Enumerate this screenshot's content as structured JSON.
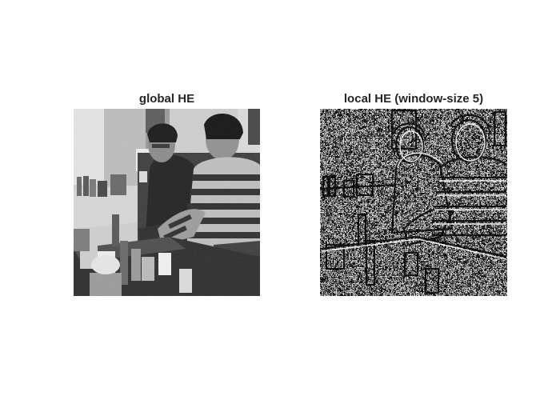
{
  "figure": {
    "background": "#ffffff",
    "panels": [
      {
        "title": "global HE",
        "content": "grayscale photo: two men seated on a sofa behind a coffee table with drink cans, bottles and cups (global histogram equalization)"
      },
      {
        "title": "local HE (window-size 5)",
        "content": "same photo after local histogram equalization: high-contrast black and white texture, embossed-looking edges"
      }
    ]
  }
}
